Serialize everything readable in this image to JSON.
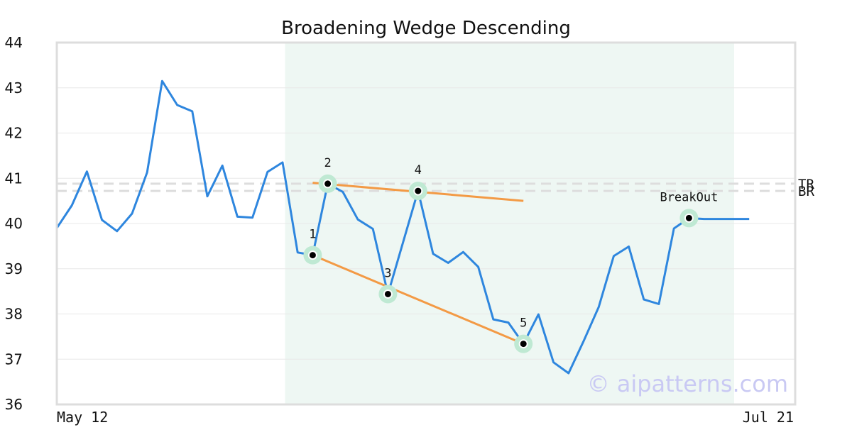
{
  "chart_data": {
    "type": "line",
    "title": "Broadening Wedge Descending",
    "xlabel": "",
    "ylabel": "",
    "ylim": [
      36,
      44
    ],
    "yticks": [
      36,
      37,
      38,
      39,
      40,
      41,
      42,
      43,
      44
    ],
    "x_tick_labels": [
      "May 12",
      "Jul 21"
    ],
    "grid": true,
    "series": [
      {
        "values": [
          39.9,
          40.4,
          41.15,
          40.08,
          39.83,
          40.22,
          41.13,
          43.15,
          42.62,
          42.48,
          40.6,
          41.28,
          40.15,
          40.13,
          41.14,
          41.35,
          39.36,
          39.3,
          40.88,
          40.7,
          40.09,
          39.88,
          38.44,
          39.58,
          40.72,
          39.33,
          39.13,
          39.37,
          39.04,
          37.88,
          37.81,
          37.34,
          37.99,
          36.93,
          36.69,
          37.4,
          38.15,
          39.28,
          39.49,
          38.32,
          38.22,
          39.89,
          40.12,
          40.1,
          40.1,
          40.1,
          40.1
        ]
      }
    ],
    "pattern_region": {
      "start_index": 15,
      "end_index": 45
    },
    "pattern_points": [
      {
        "label": "1",
        "index": 17,
        "value": 39.3
      },
      {
        "label": "2",
        "index": 18,
        "value": 40.88
      },
      {
        "label": "3",
        "index": 22,
        "value": 38.44
      },
      {
        "label": "4",
        "index": 24,
        "value": 40.72
      },
      {
        "label": "5",
        "index": 31,
        "value": 37.34
      },
      {
        "label": "BreakOut",
        "index": 42,
        "value": 40.12
      }
    ],
    "trend_lines": [
      {
        "from": {
          "index": 17,
          "value": 40.9
        },
        "to": {
          "index": 31,
          "value": 40.5
        }
      },
      {
        "from": {
          "index": 17,
          "value": 39.3
        },
        "to": {
          "index": 31,
          "value": 37.34
        }
      }
    ],
    "reference_lines": [
      {
        "label": "TR",
        "value": 40.88
      },
      {
        "label": "BR",
        "value": 40.72
      }
    ],
    "watermark": "© aipatterns.com",
    "colors": {
      "series": "#2e86de",
      "trend": "#f39a45",
      "region": "#eef7f3",
      "marker_halo": "#bfe9d3",
      "reference": "#dddddd",
      "grid": "#e8e8e8",
      "frame": "#dddddd"
    }
  }
}
